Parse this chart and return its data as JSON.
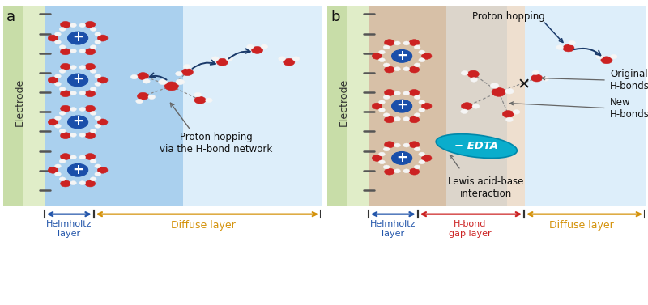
{
  "panel_a_label": "a",
  "panel_b_label": "b",
  "bg_blue": "#c5e0f0",
  "bg_green_top": "#d8e8c0",
  "bg_green_bottom": "#e8f0d8",
  "bg_orange": "#f0c8a0",
  "ion_blue_dark": "#1a4faa",
  "ion_blue_light": "#4488dd",
  "water_O_red": "#cc2222",
  "water_H_white": "#f5f5f5",
  "arrow_dark_blue": "#1a3a6a",
  "arrow_yellow": "#d4920a",
  "arrow_red_dark": "#cc2222",
  "text_blue": "#2255aa",
  "text_yellow": "#d4920a",
  "text_red": "#cc2222",
  "text_dark": "#111111",
  "edta_fill": "#0aadcc",
  "edta_border": "#0088aa",
  "stripe_color": "#555555",
  "electrode_label": "Electrode",
  "proton_hopping_a": "Proton hopping\nvia the H-bond network",
  "proton_hopping_b": "Proton hopping",
  "original_hbonds": "Original\nH-bonds",
  "new_hbonds": "New\nH-bonds",
  "lewis_label": "Lewis acid-base\ninteraction",
  "helmholtz_a": "Helmholtz\nlayer",
  "diffuse_a": "Diffuse layer",
  "helmholtz_b": "Helmholtz\nlayer",
  "hbond_gap": "H-bond\ngap layer",
  "diffuse_b": "Diffuse layer",
  "figsize": [
    8.0,
    3.77
  ],
  "dpi": 100
}
